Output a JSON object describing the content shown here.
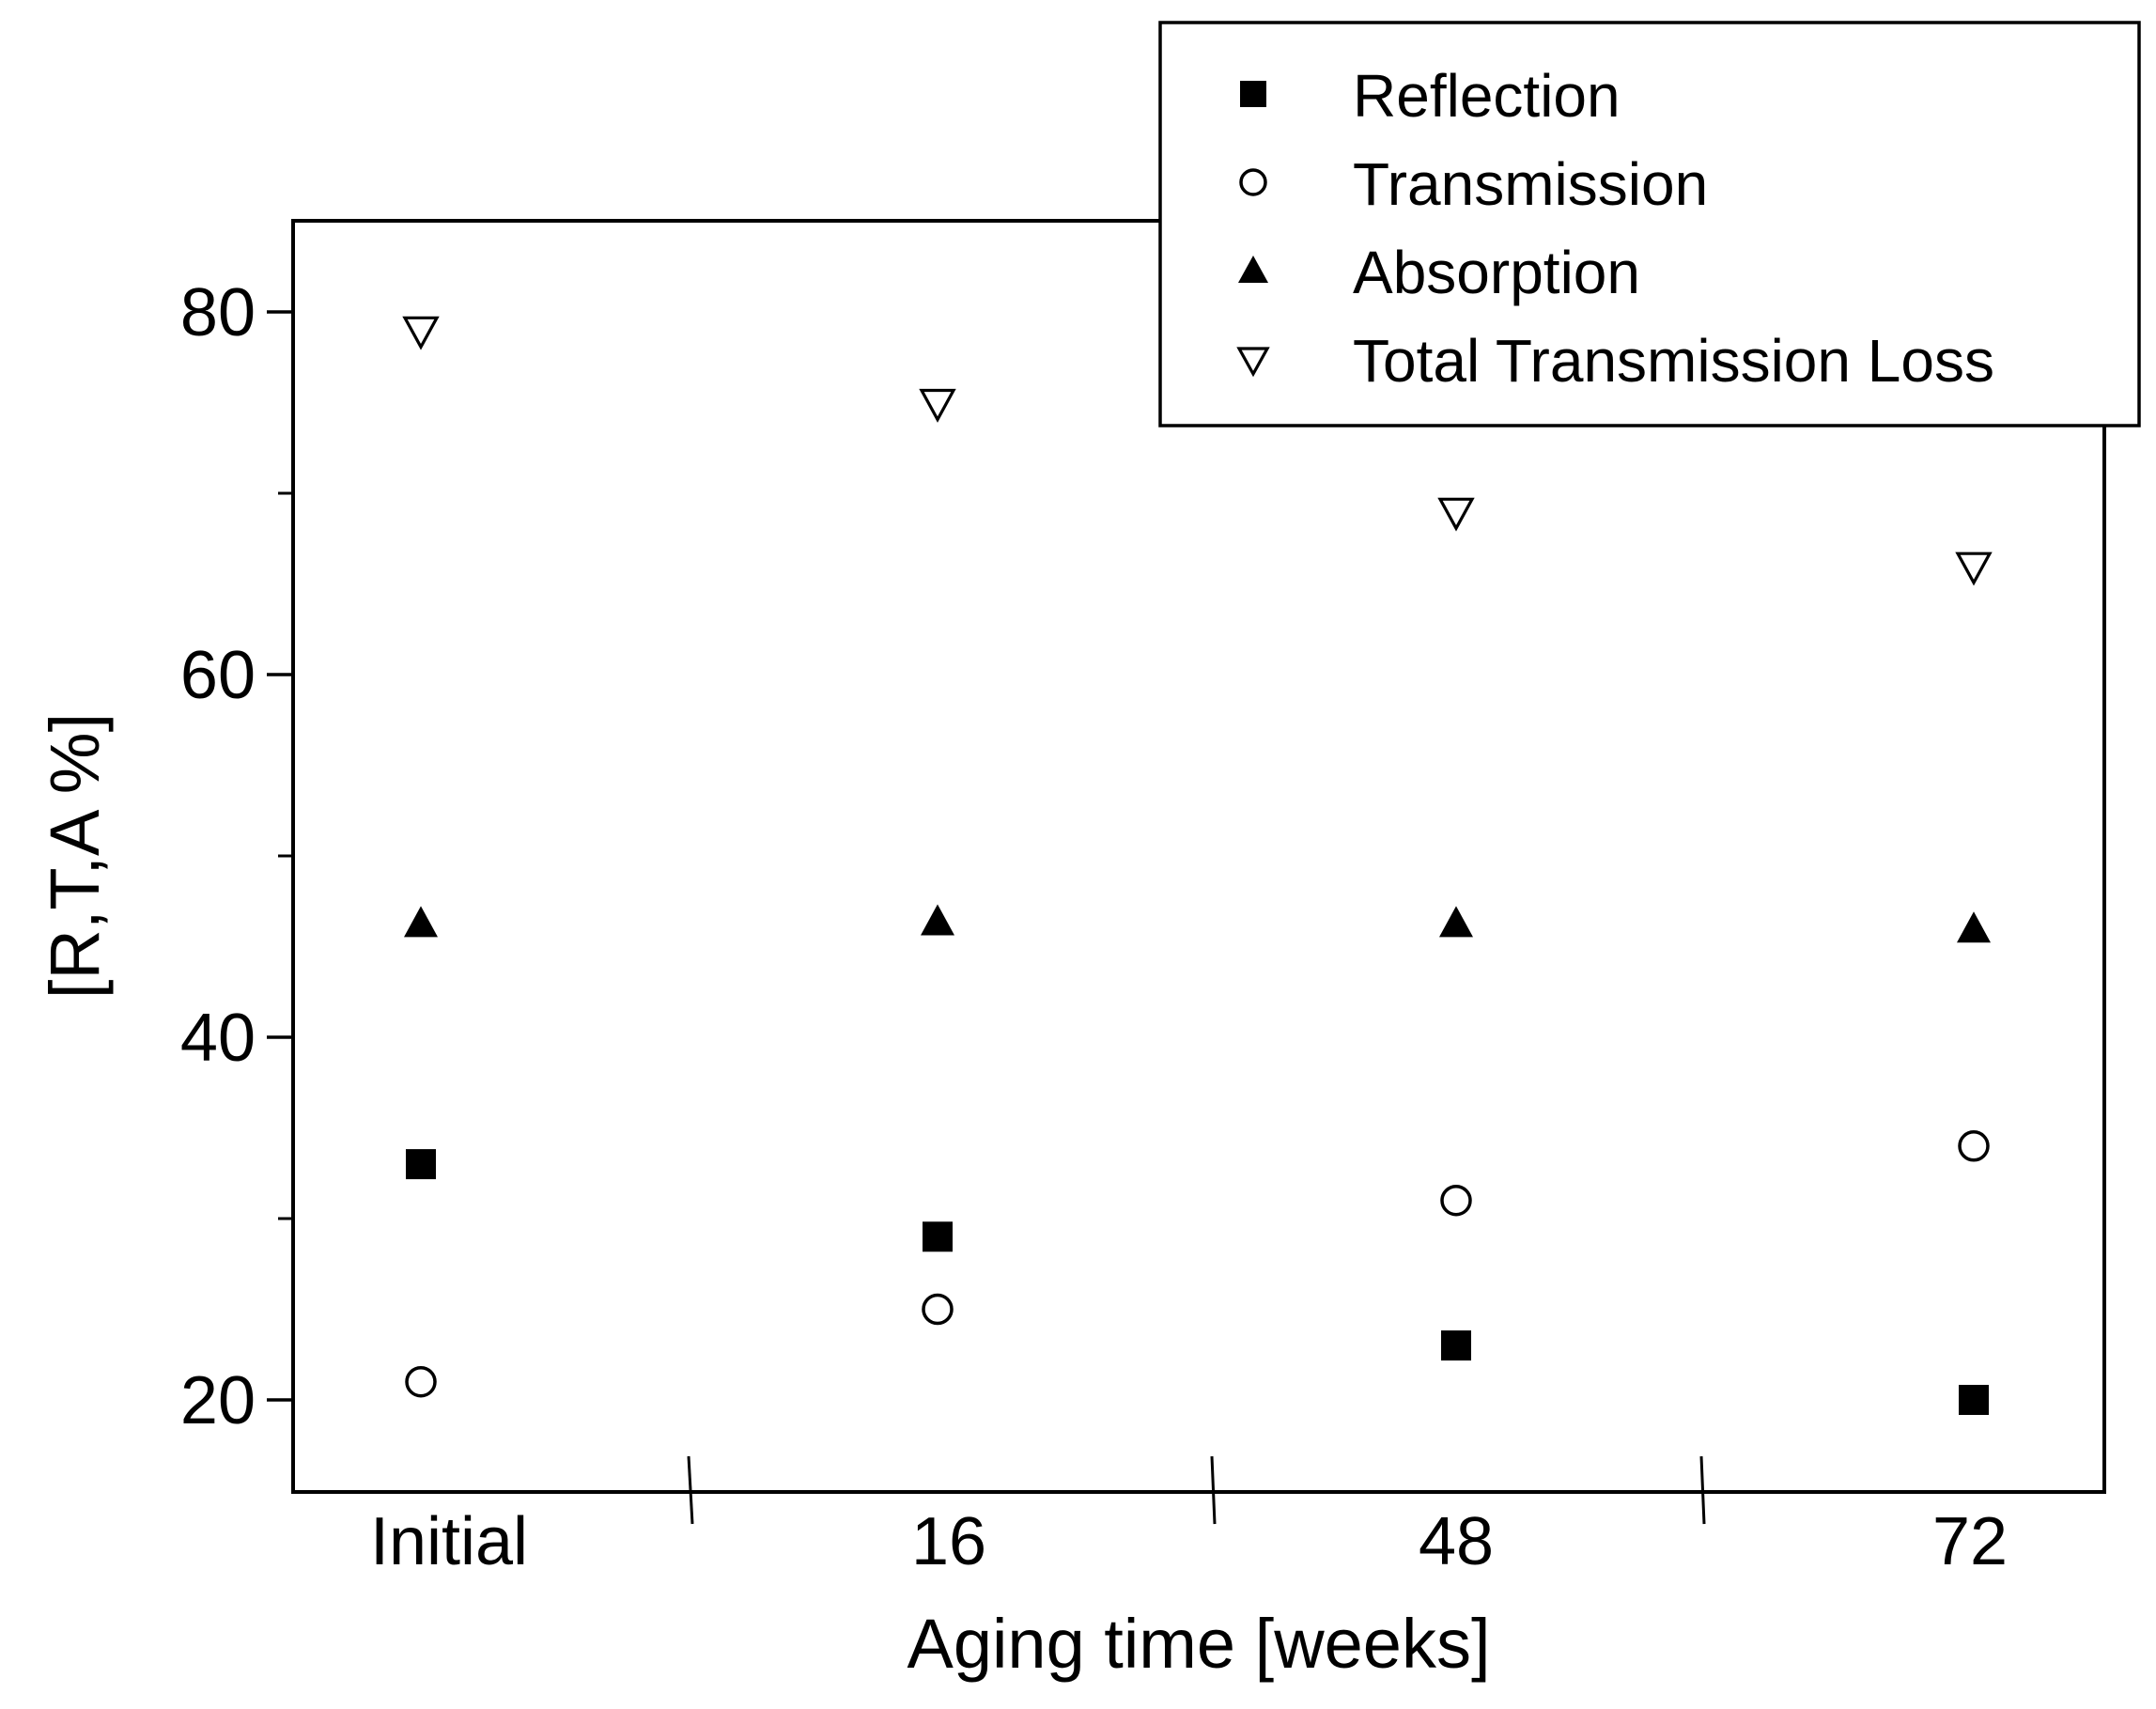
{
  "chart_data": {
    "type": "scatter",
    "categories": [
      "Initial",
      "16",
      "48",
      "72"
    ],
    "xlabel": "Aging time [weeks]",
    "ylabel": "[R,T,A %]",
    "ylim": [
      15,
      85
    ],
    "yticks": [
      20,
      40,
      60,
      80
    ],
    "yminor_ticks": [
      30,
      50,
      70
    ],
    "grid": false,
    "legend_position": "top-right",
    "series": [
      {
        "name": "Reflection",
        "marker": "filled-square",
        "values": [
          33,
          29,
          23,
          20
        ]
      },
      {
        "name": "Transmission",
        "marker": "open-circle",
        "values": [
          21,
          25,
          31,
          34
        ]
      },
      {
        "name": "Absorption",
        "marker": "filled-triangle-up",
        "values": [
          46.3,
          46.4,
          46.3,
          46
        ]
      },
      {
        "name": "Total Transmission Loss",
        "marker": "open-triangle-down",
        "values": [
          79,
          75,
          69,
          66
        ]
      }
    ]
  }
}
